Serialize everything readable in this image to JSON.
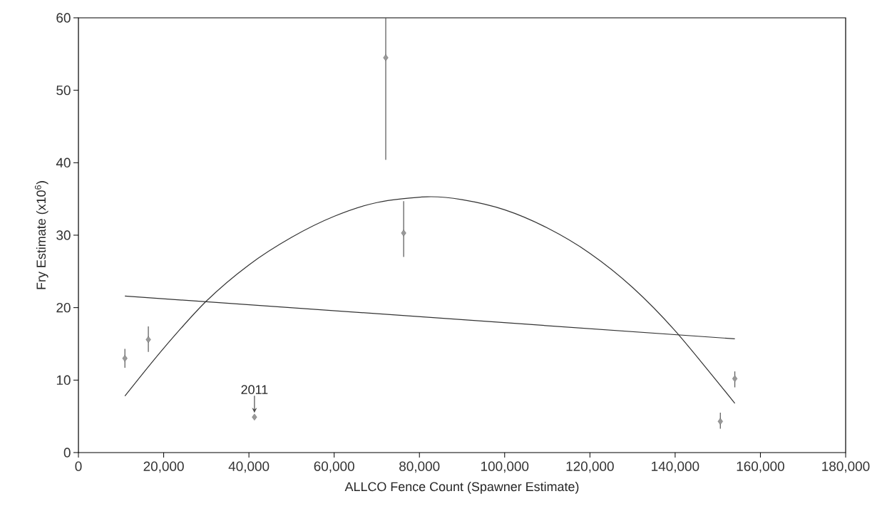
{
  "chart_data": {
    "type": "scatter",
    "xlabel": "ALLCO Fence Count (Spawner Estimate)",
    "ylabel": "Fry Estimate (x10$^{6}$)",
    "xlim": [
      0,
      180000
    ],
    "ylim": [
      0,
      60
    ],
    "xticks": [
      0,
      {
        "value": 20000,
        "label": "20,000"
      },
      {
        "value": 40000,
        "label": "40,000"
      },
      {
        "value": 60000,
        "label": "60,000"
      },
      {
        "value": 80000,
        "label": "80,000"
      },
      {
        "value": 100000,
        "label": "100,000"
      },
      {
        "value": 120000,
        "label": "120,000"
      },
      {
        "value": 140000,
        "label": "140,000"
      },
      {
        "value": 160000,
        "label": "160,000"
      },
      {
        "value": 180000,
        "label": "180,000"
      }
    ],
    "yticks": [
      0,
      10,
      20,
      30,
      40,
      50,
      60
    ],
    "grid": false,
    "annotations": [
      {
        "text": "2011",
        "x": 41300,
        "y": 4.9
      }
    ],
    "series": [
      {
        "color": "#555555",
        "marker": "diamond",
        "x": [
          10900,
          16400,
          41300,
          72100,
          76300,
          150600,
          154000
        ],
        "values": [
          13.0,
          15.6,
          4.9,
          54.5,
          30.3,
          4.3,
          10.2
        ],
        "errors": [
          1.3,
          [
            13.9,
            17.4
          ],
          null,
          [
            40.4,
            60
          ],
          [
            27.0,
            34.7
          ],
          [
            3.3,
            5.5
          ],
          [
            9.0,
            11.2
          ]
        ]
      },
      {
        "type": "line",
        "color": "#333333",
        "marker": "none",
        "x": [
          10900,
          20000,
          30000,
          40000,
          50000,
          60000,
          70000,
          81800,
          90000,
          100000,
          110000,
          120000,
          130000,
          140000,
          154000
        ],
        "values": [
          7.8,
          14.4,
          20.9,
          25.9,
          29.7,
          32.6,
          34.5,
          35.3,
          34.9,
          33.5,
          31.0,
          27.5,
          22.8,
          16.8,
          6.8
        ]
      },
      {
        "type": "line",
        "color": "#333333",
        "marker": "none",
        "x": [
          10900,
          154000
        ],
        "values": [
          21.6,
          15.7
        ]
      }
    ]
  }
}
